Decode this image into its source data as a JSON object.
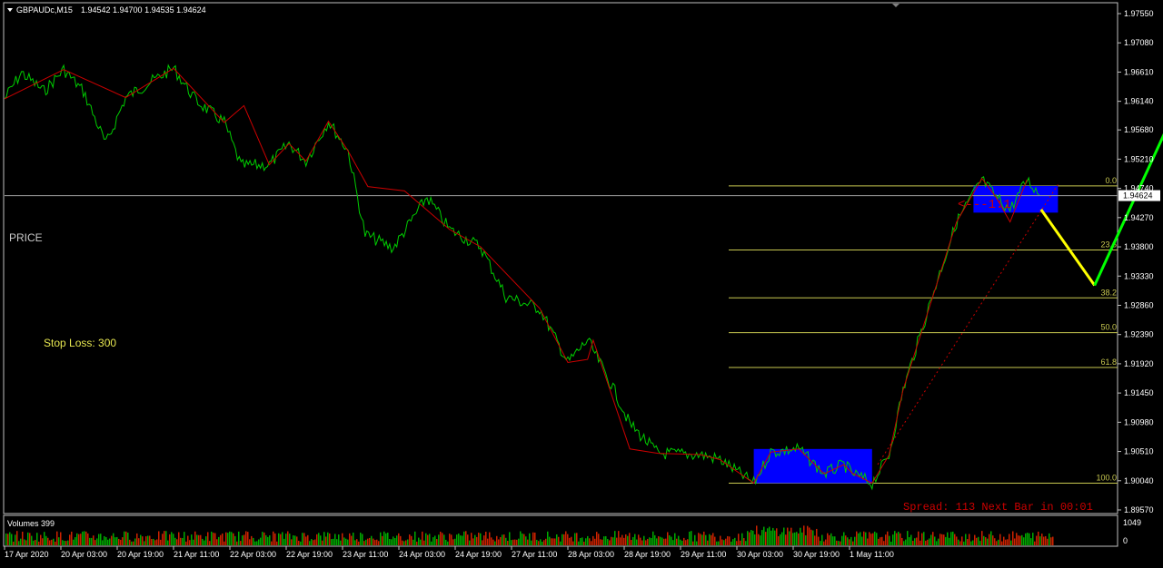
{
  "header": {
    "symbol_label": "GBPAUDc,M15",
    "ohlc": "1.94542 1.94700 1.94535 1.94624"
  },
  "labels": {
    "price": "PRICE",
    "stop_loss": "Stop Loss: 300",
    "spread": "Spread: 113 Next Bar in 00:01",
    "rr": "<---1:1",
    "volumes": "Volumes 399"
  },
  "colors": {
    "price_line": "#00cc00",
    "zigzag": "#cc0000",
    "fib": "#c8c850",
    "zone": "#0000ff",
    "forecast_down": "#ffff00",
    "forecast_up": "#00ff00",
    "spread_text": "#cc0000",
    "stop_loss_text": "#e6e650"
  },
  "chart_data": {
    "type": "line",
    "symbol": "GBPAUDc",
    "timeframe": "M15",
    "current_price": "1.94624",
    "ylim": [
      1.8957,
      1.9755
    ],
    "y_ticks": [
      "1.97550",
      "1.97080",
      "1.96610",
      "1.96140",
      "1.95680",
      "1.95210",
      "1.94740",
      "1.94270",
      "1.93800",
      "1.93330",
      "1.92860",
      "1.92390",
      "1.91920",
      "1.91450",
      "1.90980",
      "1.90510",
      "1.90040",
      "1.89570"
    ],
    "x_ticks": [
      "17 Apr 2020",
      "20 Apr 03:00",
      "20 Apr 19:00",
      "21 Apr 11:00",
      "22 Apr 03:00",
      "22 Apr 19:00",
      "23 Apr 11:00",
      "24 Apr 03:00",
      "24 Apr 19:00",
      "27 Apr 11:00",
      "28 Apr 03:00",
      "28 Apr 19:00",
      "29 Apr 11:00",
      "30 Apr 03:00",
      "30 Apr 19:00",
      "1 May 11:00"
    ],
    "zigzag": [
      [
        0,
        1.9618
      ],
      [
        1.05,
        1.9665
      ],
      [
        2.15,
        1.962
      ],
      [
        3.0,
        1.9667
      ],
      [
        3.9,
        1.958
      ],
      [
        4.25,
        1.9607
      ],
      [
        4.7,
        1.9512
      ],
      [
        5.05,
        1.9546
      ],
      [
        5.35,
        1.9518
      ],
      [
        5.75,
        1.9582
      ],
      [
        6.1,
        1.9534
      ],
      [
        6.45,
        1.9477
      ],
      [
        7.1,
        1.947
      ],
      [
        7.9,
        1.9408
      ],
      [
        8.45,
        1.938
      ],
      [
        9.5,
        1.9281
      ],
      [
        10.0,
        1.9194
      ],
      [
        10.35,
        1.9199
      ],
      [
        10.45,
        1.923
      ],
      [
        11.1,
        1.9055
      ],
      [
        11.6,
        1.9048
      ],
      [
        12.35,
        1.9046
      ],
      [
        12.7,
        1.9038
      ],
      [
        13.3,
        1.9
      ],
      [
        13.6,
        1.905
      ],
      [
        14.1,
        1.9055
      ],
      [
        14.55,
        1.9015
      ],
      [
        14.9,
        1.903
      ],
      [
        15.05,
        1.9016
      ],
      [
        15.4,
        1.9
      ],
      [
        15.7,
        1.9045
      ],
      [
        15.95,
        1.915
      ],
      [
        16.9,
        1.942
      ],
      [
        17.35,
        1.949
      ],
      [
        17.6,
        1.946
      ],
      [
        17.85,
        1.942
      ],
      [
        18.15,
        1.9488
      ]
    ],
    "price_line": [
      [
        0,
        1.9618
      ],
      [
        0.3,
        1.966
      ],
      [
        0.7,
        1.963
      ],
      [
        1.05,
        1.9665
      ],
      [
        1.4,
        1.963
      ],
      [
        1.8,
        1.9545
      ],
      [
        2.15,
        1.962
      ],
      [
        2.5,
        1.964
      ],
      [
        3.0,
        1.9667
      ],
      [
        3.4,
        1.9615
      ],
      [
        3.9,
        1.958
      ],
      [
        4.2,
        1.951
      ],
      [
        4.7,
        1.9512
      ],
      [
        5.05,
        1.9546
      ],
      [
        5.35,
        1.9518
      ],
      [
        5.75,
        1.9582
      ],
      [
        6.1,
        1.9534
      ],
      [
        6.4,
        1.94
      ],
      [
        6.9,
        1.9378
      ],
      [
        7.5,
        1.946
      ],
      [
        7.9,
        1.9408
      ],
      [
        8.45,
        1.938
      ],
      [
        8.9,
        1.93
      ],
      [
        9.5,
        1.9281
      ],
      [
        10.0,
        1.9194
      ],
      [
        10.35,
        1.923
      ],
      [
        10.8,
        1.9154
      ],
      [
        11.1,
        1.9095
      ],
      [
        11.6,
        1.9048
      ],
      [
        12.35,
        1.9046
      ],
      [
        12.7,
        1.9038
      ],
      [
        13.3,
        1.9
      ],
      [
        13.6,
        1.905
      ],
      [
        14.1,
        1.9055
      ],
      [
        14.55,
        1.9015
      ],
      [
        14.9,
        1.903
      ],
      [
        15.05,
        1.9016
      ],
      [
        15.4,
        1.9
      ],
      [
        15.7,
        1.9045
      ],
      [
        15.95,
        1.915
      ],
      [
        16.5,
        1.931
      ],
      [
        16.9,
        1.942
      ],
      [
        17.35,
        1.9488
      ],
      [
        17.6,
        1.946
      ],
      [
        17.85,
        1.944
      ],
      [
        18.15,
        1.9488
      ],
      [
        18.4,
        1.9462
      ]
    ],
    "fib_levels": [
      {
        "label": "0.0",
        "price": 1.9478
      },
      {
        "label": "23.6",
        "price": 1.9375
      },
      {
        "label": "38.2",
        "price": 1.9298
      },
      {
        "label": "50.0",
        "price": 1.9242
      },
      {
        "label": "61.8",
        "price": 1.9186
      },
      {
        "label": "100.0",
        "price": 1.9
      }
    ],
    "zones": [
      {
        "x0": 13.3,
        "x1": 15.4,
        "y_top": 1.9055,
        "y_bottom": 1.9
      },
      {
        "x0": 17.2,
        "x1": 18.7,
        "y_top": 1.9478,
        "y_bottom": 1.9435
      }
    ],
    "forecast_down": [
      [
        18.4,
        1.944
      ],
      [
        19.35,
        1.9318
      ]
    ],
    "forecast_up": [
      [
        19.35,
        1.9318
      ],
      [
        21.4,
        1.9722
      ]
    ],
    "volumes_label": "Volumes 399",
    "volume_ticks": [
      "1049",
      "0"
    ]
  }
}
